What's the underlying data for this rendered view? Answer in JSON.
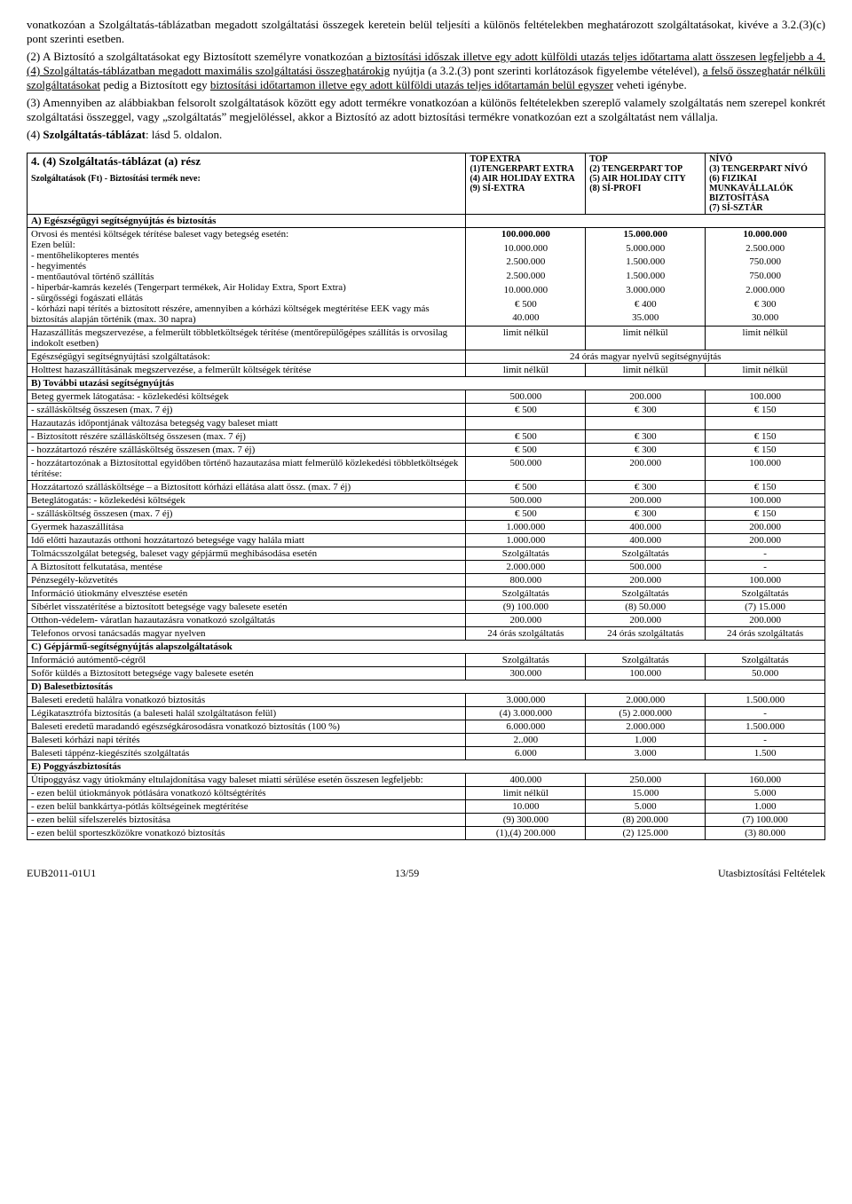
{
  "paragraphs": {
    "p1a": "vonatkozóan a Szolgáltatás-táblázatban megadott szolgáltatási összegek keretein belül teljesíti a különös feltételekben meghatározott szolgáltatásokat, kivéve a 3.2.(3)(c) pont szerinti esetben.",
    "p2_pre": "(2) A Biztosító a szolgáltatásokat egy Biztosított személyre vonatkozóan ",
    "p2_u1": "a biztosítási időszak illetve egy adott külföldi utazás teljes időtartama alatt összesen legfeljebb a 4.(4) Szolgáltatás-táblázatban megadott maximális szolgáltatási összeghatárokig",
    "p2_mid": " nyújtja (a 3.2.(3) pont szerinti korlátozások figyelembe vételével), ",
    "p2_u2": "a felső összeghatár nélküli szolgáltatásokat",
    "p2_mid2": " pedig a Biztosított egy ",
    "p2_u3": "biztosítási időtartamon illetve egy adott külföldi utazás teljes időtartamán belül egyszer",
    "p2_end": " veheti igénybe.",
    "p3": "(3) Amennyiben az alábbiakban felsorolt szolgáltatások között egy adott termékre vonatkozóan a különös feltételekben szereplő valamely szolgáltatás nem szerepel konkrét szolgáltatási összeggel, vagy „szolgáltatás” megjelöléssel, akkor a Biztosító az adott biztosítási termékre vonatkozóan ezt a szolgáltatást nem vállalja.",
    "p4_pre": "(4) ",
    "p4_b": "Szolgáltatás-táblázat",
    "p4_post": ": lásd 5. oldalon."
  },
  "table": {
    "title": "4. (4) Szolgáltatás-táblázat (a) rész",
    "subtitle": "Szolgáltatások (Ft) - Biztosítási termék neve:",
    "col1": "TOP EXTRA\n(1)TENGERPART EXTRA\n(4) AIR HOLIDAY EXTRA\n(9) SÍ-EXTRA",
    "col2": "TOP\n(2) TENGERPART TOP\n(5) AIR HOLIDAY CITY\n(8) SÍ-PROFI",
    "col3": "NÍVÓ\n(3) TENGERPART NÍVÓ\n(6) FIZIKAI MUNKAVÁLLALÓK BIZTOSÍTÁSA\n(7) SÍ-SZTÁR",
    "sec_a": "A) Egészségügyi segítségnyújtás és biztosítás",
    "r1": [
      "Orvosi és mentési költségek térítése baleset vagy betegség esetén:",
      "100.000.000",
      "15.000.000",
      "10.000.000"
    ],
    "r2": [
      "Ezen belül:",
      "",
      "",
      ""
    ],
    "r3": [
      "- mentőhelikopteres mentés",
      "10.000.000",
      "5.000.000",
      "2.500.000"
    ],
    "r4": [
      "- hegyimentés",
      "2.500.000",
      "1.500.000",
      "750.000"
    ],
    "r5": [
      "- mentőautóval történő szállítás",
      "2.500.000",
      "1.500.000",
      "750.000"
    ],
    "r6": [
      "- hiperbár-kamrás kezelés (Tengerpart termékek, Air Holiday Extra, Sport Extra)",
      "10.000.000",
      "3.000.000",
      "2.000.000"
    ],
    "r7": [
      "- sürgősségi fogászati ellátás",
      "€ 500",
      "€ 400",
      "€ 300"
    ],
    "r8": [
      "- kórházi napi térítés a biztosított részére, amennyiben a kórházi költségek megtérítése EEK vagy más biztosítás alapján történik (max. 30 napra)",
      "40.000",
      "35.000",
      "30.000"
    ],
    "r9": [
      "Hazaszállítás megszervezése, a felmerült többletköltségek térítése (mentőrepülőgépes szállítás is orvosilag indokolt esetben)",
      "limit nélkül",
      "limit nélkül",
      "limit nélkül"
    ],
    "r10": [
      "Egészségügyi segítségnyújtási szolgáltatások:",
      "24 órás magyar nyelvű segítségnyújtás"
    ],
    "r11": [
      "Holttest hazaszállításának megszervezése, a felmerült költségek térítése",
      "limit nélkül",
      "limit nélkül",
      "limit nélkül"
    ],
    "sec_b": "B) További utazási segítségnyújtás",
    "r12": [
      "Beteg gyermek látogatása:  - közlekedési költségek",
      "500.000",
      "200.000",
      "100.000"
    ],
    "r13": [
      "                                           - szállásköltség összesen (max. 7 éj)",
      "€ 500",
      "€ 300",
      "€ 150"
    ],
    "r14": [
      "Hazautazás időpontjának változása betegség vagy baleset miatt",
      "",
      "",
      ""
    ],
    "r15": [
      "- Biztosított részére szállásköltség összesen (max. 7 éj)",
      "€ 500",
      "€ 300",
      "€ 150"
    ],
    "r16": [
      "- hozzátartozó részére szállásköltség összesen (max. 7 éj)",
      "€ 500",
      "€ 300",
      "€ 150"
    ],
    "r17": [
      "- hozzátartozónak a Biztosítottal egyidőben történő hazautazása miatt felmerülő közlekedési többletköltségek térítése:",
      "500.000",
      "200.000",
      "100.000"
    ],
    "r18": [
      "Hozzátartozó szállásköltsége – a Biztosított kórházi ellátása alatt össz. (max. 7 éj)",
      "€ 500",
      "€ 300",
      "€ 150"
    ],
    "r19": [
      "Beteglátogatás:  - közlekedési költségek",
      "500.000",
      "200.000",
      "100.000"
    ],
    "r20": [
      "                          - szállásköltség összesen (max. 7 éj)",
      "€ 500",
      "€ 300",
      "€ 150"
    ],
    "r21": [
      "Gyermek hazaszállítása",
      "1.000.000",
      "400.000",
      "200.000"
    ],
    "r22": [
      "Idő előtti hazautazás otthoni hozzátartozó betegsége vagy halála miatt",
      "1.000.000",
      "400.000",
      "200.000"
    ],
    "r23": [
      "Tolmácsszolgálat  betegség, baleset vagy gépjármű meghibásodása esetén",
      "Szolgáltatás",
      "Szolgáltatás",
      "-"
    ],
    "r24": [
      "A Biztosított felkutatása, mentése",
      "2.000.000",
      "500.000",
      "-"
    ],
    "r25": [
      "Pénzsegély-közvetítés",
      "800.000",
      "200.000",
      "100.000"
    ],
    "r26": [
      "Információ útiokmány elvesztése esetén",
      "Szolgáltatás",
      "Szolgáltatás",
      "Szolgáltatás"
    ],
    "r27": [
      "Síbérlet visszatérítése a biztosított betegsége vagy balesete esetén",
      "(9) 100.000",
      "(8) 50.000",
      "(7) 15.000"
    ],
    "r28": [
      "Otthon-védelem- váratlan hazautazásra vonatkozó szolgáltatás",
      "200.000",
      "200.000",
      "200.000"
    ],
    "r29": [
      "Telefonos orvosi tanácsadás magyar nyelven",
      "24 órás szolgáltatás",
      "24 órás szolgáltatás",
      "24 órás szolgáltatás"
    ],
    "sec_c": "C) Gépjármű-segítségnyújtás alapszolgáltatások",
    "r30": [
      "Információ autómentő-cégről",
      "Szolgáltatás",
      "Szolgáltatás",
      "Szolgáltatás"
    ],
    "r31": [
      "Sofőr küldés a Biztosított betegsége vagy balesete esetén",
      "300.000",
      "100.000",
      "50.000"
    ],
    "sec_d": "D) Balesetbiztosítás",
    "r32": [
      "Baleseti eredetű halálra vonatkozó biztosítás",
      "3.000.000",
      "2.000.000",
      "1.500.000"
    ],
    "r33": [
      "Légikatasztrófa biztosítás (a baleseti halál szolgáltatáson felül)",
      "(4) 3.000.000",
      "(5) 2.000.000",
      "-"
    ],
    "r34": [
      "Baleseti eredetű maradandó egészségkárosodásra vonatkozó biztosítás (100 %)",
      "6.000.000",
      "2.000.000",
      "1.500.000"
    ],
    "r35": [
      "Baleseti kórházi napi térítés",
      "2..000",
      "1.000",
      "-"
    ],
    "r36": [
      "Baleseti táppénz-kiegészítés szolgáltatás",
      "6.000",
      "3.000",
      "1.500"
    ],
    "sec_e": "E) Poggyászbiztosítás",
    "r37": [
      "Útipoggyász vagy útiokmány eltulajdonítása vagy baleset miatti sérülése esetén összesen legfeljebb:",
      "400.000",
      "250.000",
      "160.000"
    ],
    "r38": [
      "- ezen belül útiokmányok pótlására vonatkozó költségtérítés",
      "limit nélkül",
      "15.000",
      "5.000"
    ],
    "r39": [
      "- ezen belül bankkártya-pótlás költségeinek megtérítése",
      "10.000",
      "5.000",
      "1.000"
    ],
    "r40": [
      "- ezen belül sífelszerelés biztosítása",
      "(9) 300.000",
      "(8) 200.000",
      "(7) 100.000"
    ],
    "r41": [
      "- ezen belül sporteszközökre vonatkozó biztosítás",
      "(1),(4) 200.000",
      "(2) 125.000",
      "(3) 80.000"
    ]
  },
  "footer": {
    "left": "EUB2011-01U1",
    "center": "13/59",
    "right": "Utasbiztosítási Feltételek"
  }
}
